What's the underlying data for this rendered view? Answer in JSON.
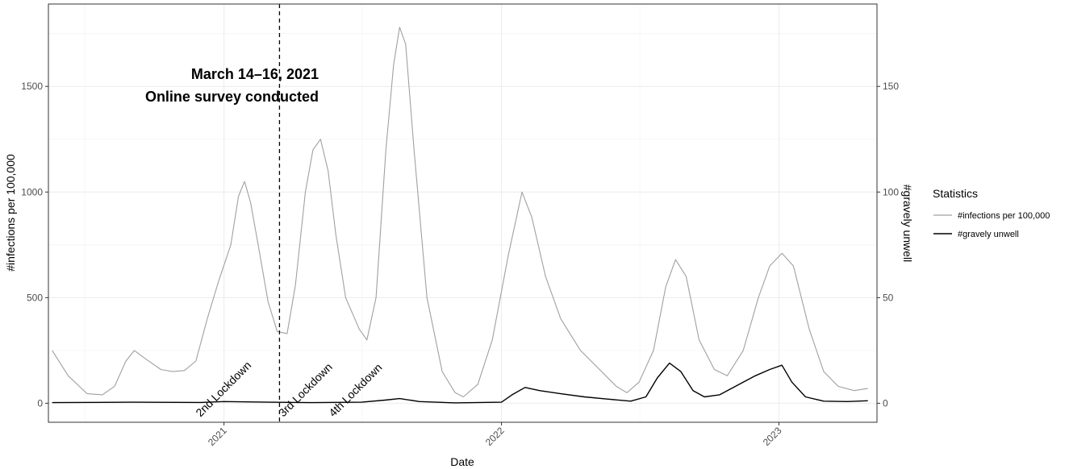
{
  "chart_data": {
    "type": "line",
    "xlabel": "Date",
    "ylabel": "#infections per 100,000",
    "y2label": "#gravely unwell",
    "xlim": [
      "2020-05-15",
      "2023-05-10"
    ],
    "ylim": [
      -90,
      1890
    ],
    "y2lim": [
      -9,
      189
    ],
    "x_ticks": [
      {
        "date": "2021-01-01",
        "label": "2021"
      },
      {
        "date": "2022-01-01",
        "label": "2022"
      },
      {
        "date": "2023-01-01",
        "label": "2023"
      }
    ],
    "y_ticks": [
      0,
      500,
      1000,
      1500
    ],
    "y2_ticks": [
      0,
      50,
      100,
      150
    ],
    "grid": true,
    "legend": {
      "title": "Statistics",
      "placement": "right",
      "entries": [
        {
          "name": "#infections per 100,000",
          "color": "#a0a0a0"
        },
        {
          "name": "#gravely unwell",
          "color": "#000000"
        }
      ]
    },
    "annotations": {
      "survey_line_date": "2021-03-15",
      "line1": "March 14–16, 2021",
      "line2": "Online survey conducted",
      "lockdowns": [
        {
          "date": "2020-12-01",
          "label": "2nd Lockdown"
        },
        {
          "date": "2021-03-20",
          "label": "3rd Lockdown"
        },
        {
          "date": "2021-05-25",
          "label": "4th Lockdown"
        }
      ]
    },
    "series": [
      {
        "name": "#infections per 100,000",
        "axis": "left",
        "color": "#a0a0a0",
        "points": [
          [
            "2020-05-20",
            250
          ],
          [
            "2020-06-10",
            130
          ],
          [
            "2020-07-05",
            45
          ],
          [
            "2020-07-25",
            40
          ],
          [
            "2020-08-10",
            80
          ],
          [
            "2020-08-25",
            200
          ],
          [
            "2020-09-05",
            250
          ],
          [
            "2020-09-20",
            210
          ],
          [
            "2020-10-10",
            160
          ],
          [
            "2020-10-25",
            150
          ],
          [
            "2020-11-10",
            155
          ],
          [
            "2020-11-25",
            200
          ],
          [
            "2020-12-10",
            400
          ],
          [
            "2020-12-25",
            580
          ],
          [
            "2021-01-10",
            750
          ],
          [
            "2021-01-20",
            980
          ],
          [
            "2021-01-28",
            1050
          ],
          [
            "2021-02-05",
            950
          ],
          [
            "2021-02-15",
            750
          ],
          [
            "2021-02-28",
            480
          ],
          [
            "2021-03-12",
            340
          ],
          [
            "2021-03-25",
            330
          ],
          [
            "2021-04-05",
            560
          ],
          [
            "2021-04-18",
            1000
          ],
          [
            "2021-04-28",
            1200
          ],
          [
            "2021-05-08",
            1250
          ],
          [
            "2021-05-18",
            1100
          ],
          [
            "2021-05-28",
            800
          ],
          [
            "2021-06-10",
            500
          ],
          [
            "2021-06-28",
            350
          ],
          [
            "2021-07-08",
            300
          ],
          [
            "2021-07-20",
            500
          ],
          [
            "2021-08-02",
            1200
          ],
          [
            "2021-08-12",
            1600
          ],
          [
            "2021-08-20",
            1780
          ],
          [
            "2021-08-28",
            1700
          ],
          [
            "2021-09-08",
            1200
          ],
          [
            "2021-09-25",
            500
          ],
          [
            "2021-10-15",
            150
          ],
          [
            "2021-11-01",
            50
          ],
          [
            "2021-11-12",
            30
          ],
          [
            "2021-12-01",
            90
          ],
          [
            "2021-12-20",
            300
          ],
          [
            "2022-01-10",
            700
          ],
          [
            "2022-01-28",
            1000
          ],
          [
            "2022-02-10",
            880
          ],
          [
            "2022-02-28",
            600
          ],
          [
            "2022-03-20",
            400
          ],
          [
            "2022-04-15",
            250
          ],
          [
            "2022-05-10",
            160
          ],
          [
            "2022-06-01",
            80
          ],
          [
            "2022-06-15",
            50
          ],
          [
            "2022-07-01",
            100
          ],
          [
            "2022-07-20",
            250
          ],
          [
            "2022-08-05",
            550
          ],
          [
            "2022-08-18",
            680
          ],
          [
            "2022-09-01",
            600
          ],
          [
            "2022-09-18",
            300
          ],
          [
            "2022-10-08",
            160
          ],
          [
            "2022-10-25",
            130
          ],
          [
            "2022-11-15",
            250
          ],
          [
            "2022-12-05",
            500
          ],
          [
            "2022-12-20",
            650
          ],
          [
            "2023-01-05",
            710
          ],
          [
            "2023-01-20",
            650
          ],
          [
            "2023-02-10",
            350
          ],
          [
            "2023-03-01",
            150
          ],
          [
            "2023-03-20",
            80
          ],
          [
            "2023-04-10",
            60
          ],
          [
            "2023-04-28",
            70
          ]
        ]
      },
      {
        "name": "#gravely unwell",
        "axis": "right",
        "color": "#000000",
        "points": [
          [
            "2020-05-20",
            0.3
          ],
          [
            "2020-09-01",
            0.5
          ],
          [
            "2020-12-01",
            0.4
          ],
          [
            "2021-01-01",
            0.8
          ],
          [
            "2021-03-01",
            0.5
          ],
          [
            "2021-05-01",
            0.3
          ],
          [
            "2021-07-01",
            0.5
          ],
          [
            "2021-08-01",
            1.5
          ],
          [
            "2021-08-20",
            2.2
          ],
          [
            "2021-09-15",
            0.8
          ],
          [
            "2021-11-01",
            0.2
          ],
          [
            "2022-01-01",
            0.5
          ],
          [
            "2022-01-15",
            4
          ],
          [
            "2022-02-01",
            7.5
          ],
          [
            "2022-02-20",
            6
          ],
          [
            "2022-03-20",
            4.5
          ],
          [
            "2022-04-20",
            3
          ],
          [
            "2022-05-20",
            2
          ],
          [
            "2022-06-20",
            1
          ],
          [
            "2022-07-10",
            3
          ],
          [
            "2022-07-25",
            12
          ],
          [
            "2022-08-10",
            19
          ],
          [
            "2022-08-25",
            15
          ],
          [
            "2022-09-10",
            6
          ],
          [
            "2022-09-25",
            3
          ],
          [
            "2022-10-15",
            4
          ],
          [
            "2022-11-10",
            9
          ],
          [
            "2022-12-01",
            13
          ],
          [
            "2022-12-20",
            16
          ],
          [
            "2023-01-05",
            18
          ],
          [
            "2023-01-18",
            10
          ],
          [
            "2023-02-05",
            3
          ],
          [
            "2023-03-01",
            1
          ],
          [
            "2023-04-01",
            0.8
          ],
          [
            "2023-04-28",
            1.2
          ]
        ]
      }
    ]
  }
}
